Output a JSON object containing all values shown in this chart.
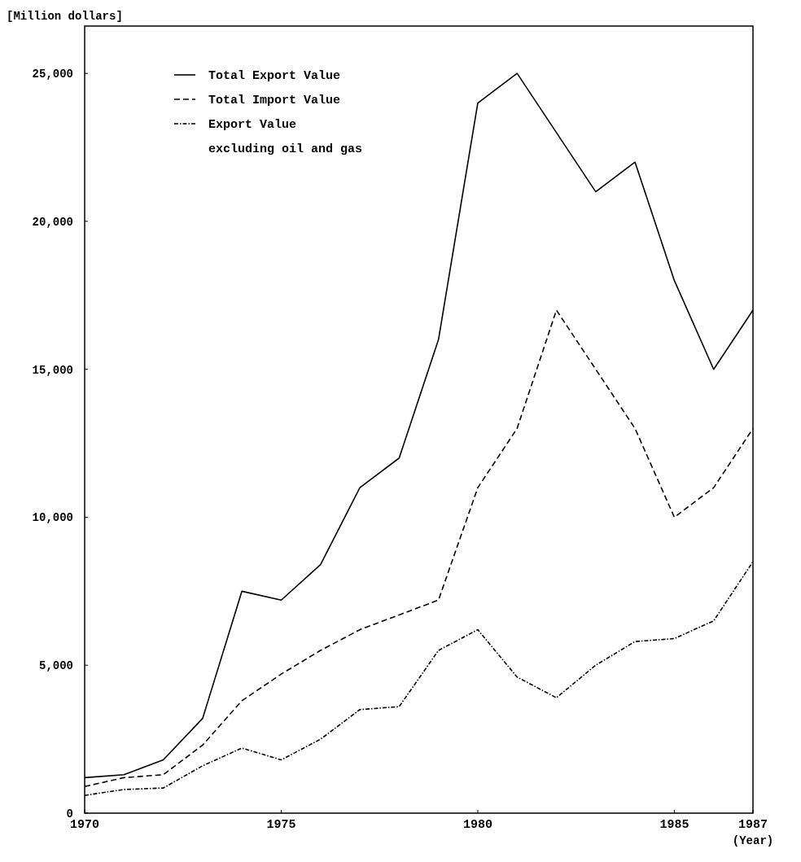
{
  "chart_data": {
    "type": "line",
    "ylabel": "[Million dollars]",
    "annotations": [
      "(Year)"
    ],
    "x": [
      1970,
      1971,
      1972,
      1973,
      1974,
      1975,
      1976,
      1977,
      1978,
      1979,
      1980,
      1981,
      1982,
      1983,
      1984,
      1985,
      1986,
      1987
    ],
    "xlim": [
      1970,
      1987
    ],
    "xticks": [
      1970,
      1975,
      1980,
      1985,
      1987
    ],
    "ylim": [
      0,
      26600
    ],
    "yticks": [
      {
        "value": 0,
        "label": "0"
      },
      {
        "value": 5000,
        "label": "5,000"
      },
      {
        "value": 10000,
        "label": "10,000"
      },
      {
        "value": 15000,
        "label": "15,000"
      },
      {
        "value": 20000,
        "label": "20,000"
      },
      {
        "value": 25000,
        "label": "25,000"
      }
    ],
    "grid": false,
    "legend": "top left",
    "series": [
      {
        "name": "Total Export Value",
        "color": "#000000",
        "line_style": "solid",
        "values": [
          1200,
          1300,
          1800,
          3200,
          7500,
          7200,
          8400,
          11000,
          12000,
          16000,
          24000,
          25000,
          23000,
          21000,
          22000,
          18000,
          15000,
          17000
        ]
      },
      {
        "name": "Total Import Value",
        "color": "#000000",
        "line_style": "dashed",
        "values": [
          900,
          1200,
          1300,
          2300,
          3800,
          4700,
          5500,
          6200,
          6700,
          7200,
          11000,
          13000,
          17000,
          15000,
          13000,
          10000,
          11000,
          13000
        ]
      },
      {
        "name": "Export Value\nexcluding oil and gas",
        "color": "#000000",
        "line_style": "dotted",
        "values": [
          600,
          800,
          850,
          1600,
          2200,
          1800,
          2500,
          3500,
          3600,
          5500,
          6200,
          4600,
          3900,
          5000,
          5800,
          5900,
          6500,
          8500
        ]
      }
    ]
  }
}
